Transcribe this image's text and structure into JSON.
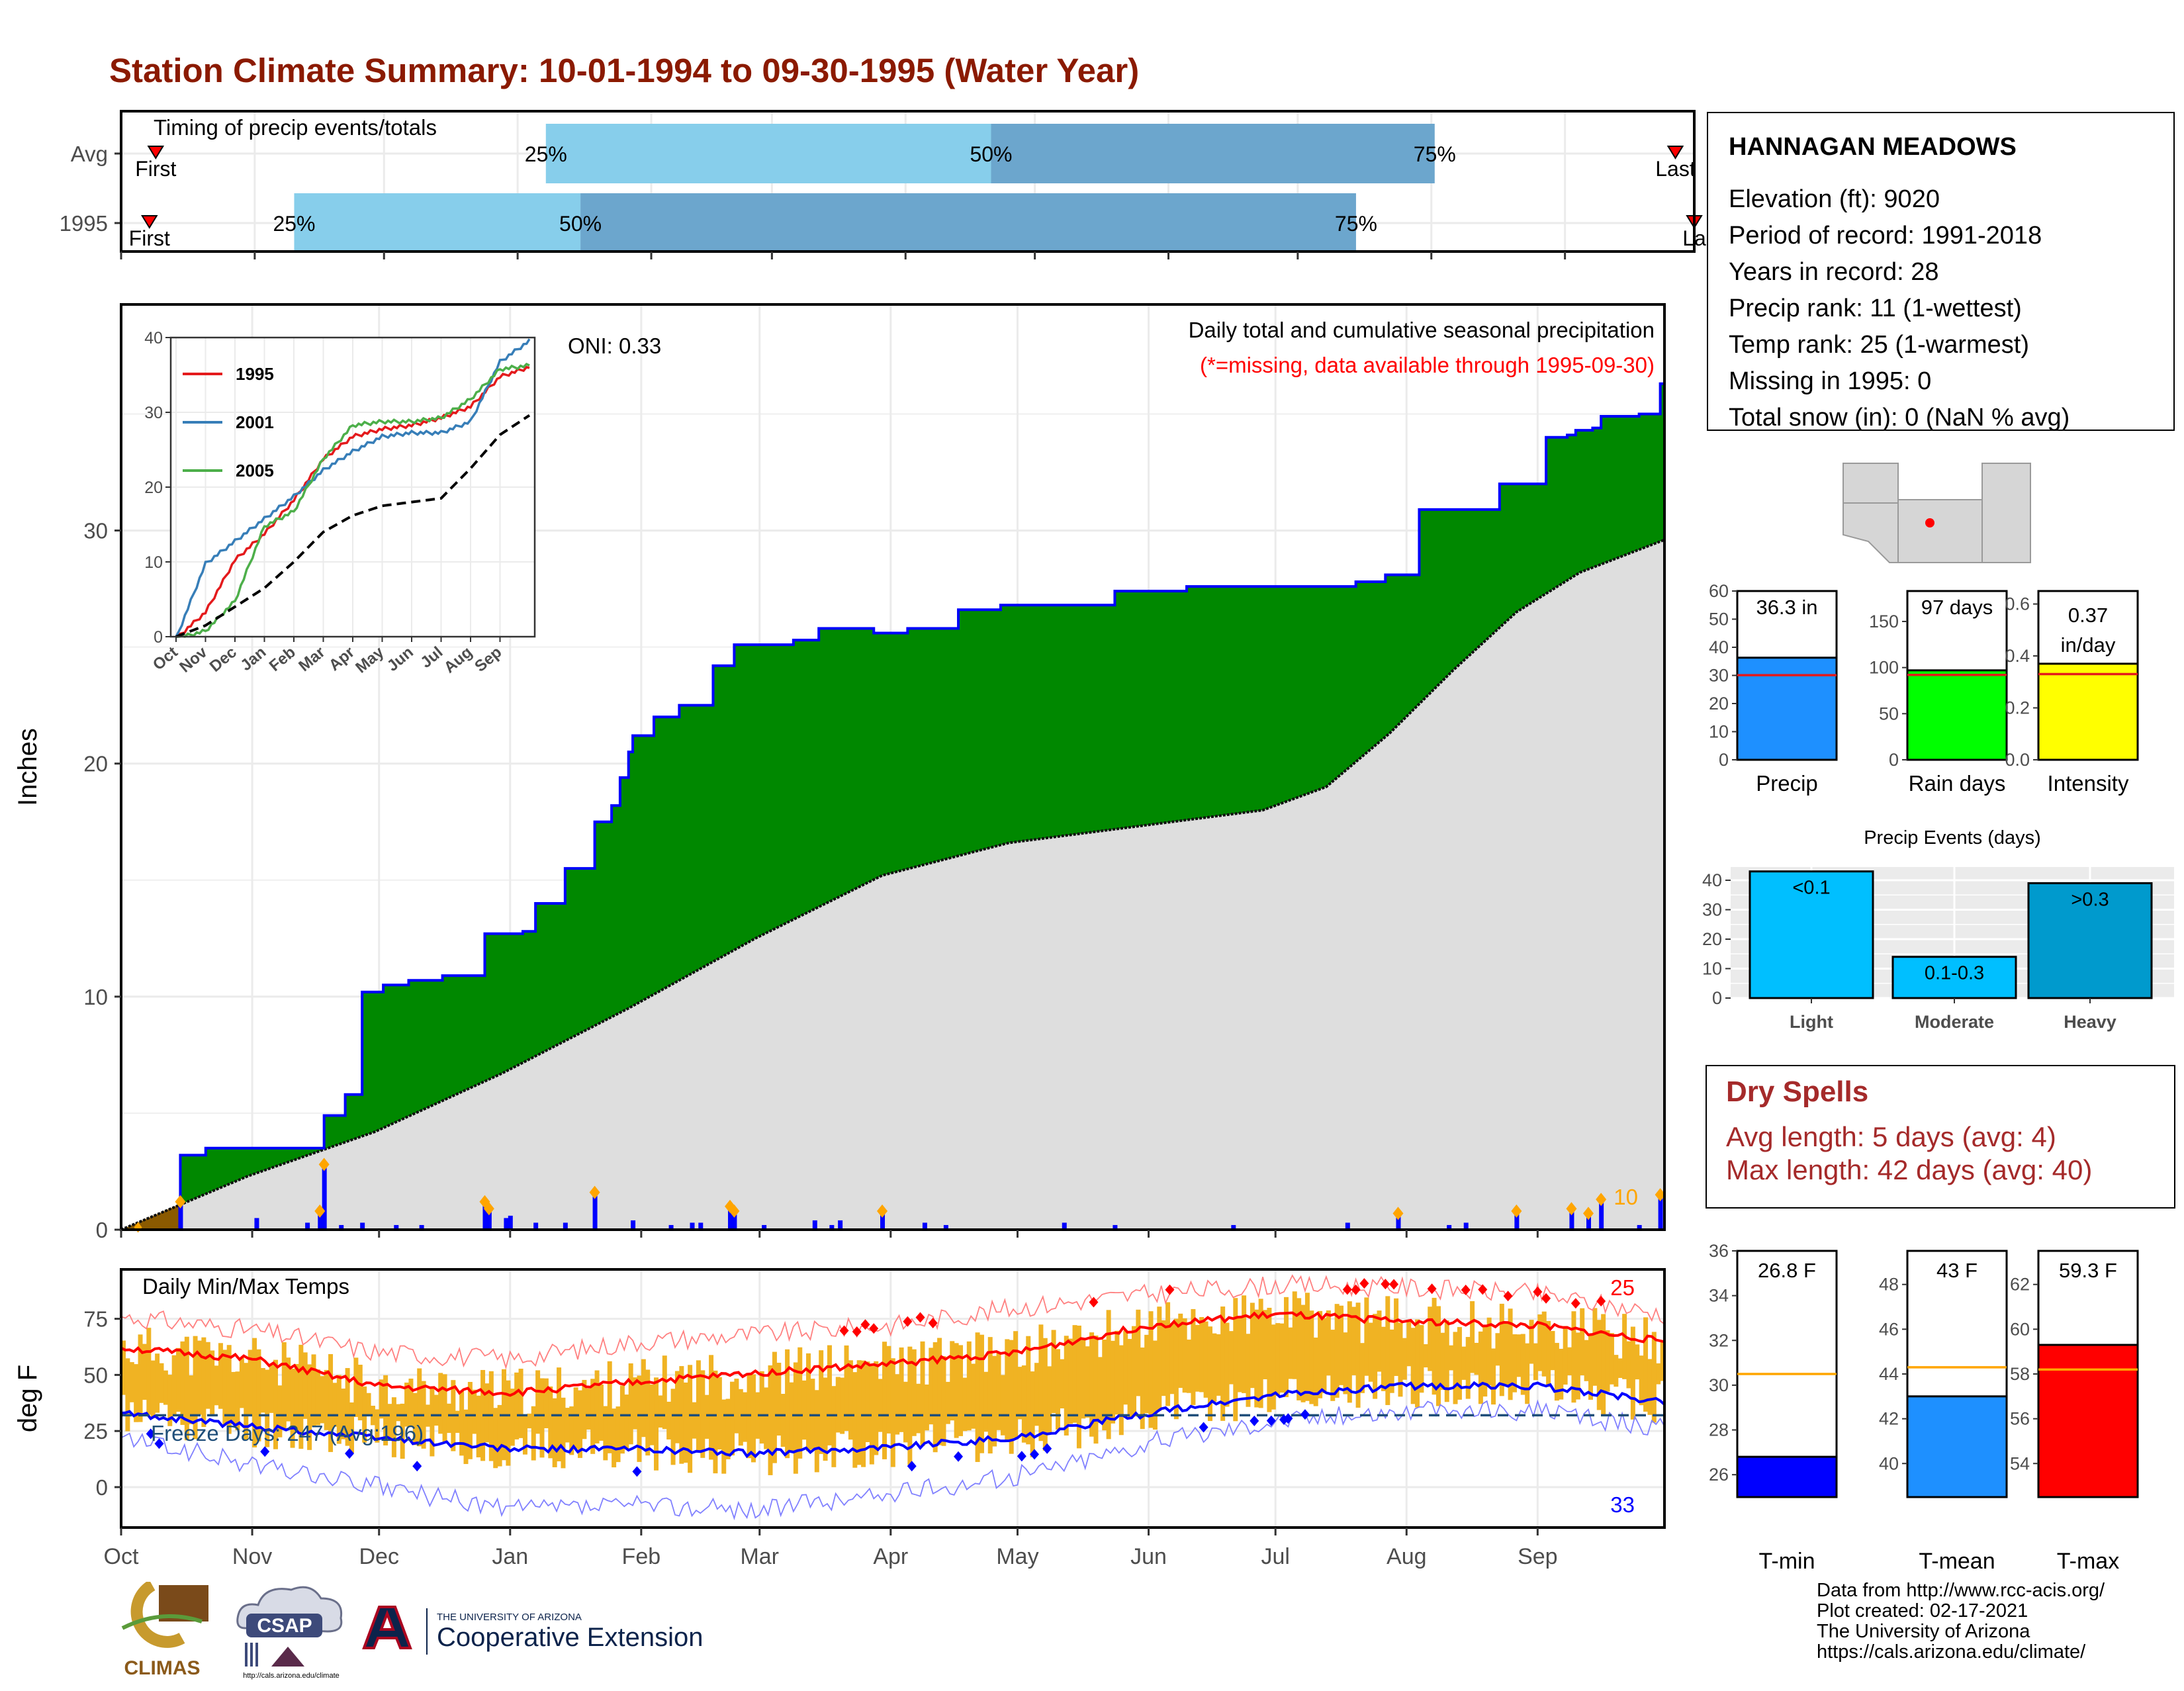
{
  "title": "Station Climate Summary: 10-01-1994 to 09-30-1995 (Water Year)",
  "timing": {
    "label": "Timing of precip events/totals",
    "rows": [
      {
        "name": "Avg",
        "first_label": "First",
        "last_label": "Last",
        "first": 0.022,
        "q25": 0.27,
        "q50": 0.553,
        "q75": 0.835,
        "last": 0.988
      },
      {
        "name": "1995",
        "first_label": "First",
        "last_label": "La",
        "first": 0.018,
        "q25": 0.11,
        "q50": 0.292,
        "q75": 0.785,
        "last": 1.0
      }
    ],
    "q_labels": [
      "25%",
      "50%",
      "75%"
    ]
  },
  "station": {
    "name": "HANNAGAN MEADOWS",
    "lines": [
      "Elevation (ft): 9020",
      "Period of record: 1991-2018",
      "Years in record: 28",
      "Precip rank: 11 (1-wettest)",
      "Temp rank: 25 (1-warmest)",
      "Missing in 1995: 0",
      "Total snow (in): 0 (NaN % avg)"
    ]
  },
  "main_plot": {
    "ylabel": "Inches",
    "caption": "Daily total and cumulative seasonal precipitation",
    "missing_note": "(*=missing, data available through 1995-09-30)",
    "oni": "ONI: 0.33",
    "count_label": "10",
    "yticks": [
      0,
      10,
      20,
      30
    ],
    "ylim": [
      0,
      40
    ],
    "month_labels": [
      "Oct",
      "Nov",
      "Dec",
      "Jan",
      "Feb",
      "Mar",
      "Apr",
      "May",
      "Jun",
      "Jul",
      "Aug",
      "Sep"
    ],
    "colors": {
      "above_avg": "#008800",
      "avg_fill": "#dedede",
      "cum_line": "#0000ff",
      "daily_bar": "#0000ff",
      "marker": "#ffa500"
    }
  },
  "inset": {
    "yticks": [
      0,
      10,
      20,
      30,
      40
    ],
    "month_labels": [
      "Oct",
      "Nov",
      "Dec",
      "Jan",
      "Feb",
      "Mar",
      "Apr",
      "May",
      "Jun",
      "Jul",
      "Aug",
      "Sep"
    ],
    "legend": [
      {
        "name": "1995",
        "color": "#e41a1c"
      },
      {
        "name": "2001",
        "color": "#377eb8"
      },
      {
        "name": "2005",
        "color": "#4daf4a"
      }
    ]
  },
  "temp_plot": {
    "ylabel": "deg F",
    "title": "Daily Min/Max Temps",
    "freeze_label": "Freeze Days: 247 (Avg:196)",
    "hot_count": "25",
    "cold_count": "33",
    "yticks": [
      0,
      25,
      50,
      75
    ],
    "ylim": [
      -18,
      97
    ]
  },
  "mini_bars": [
    {
      "name": "Precip",
      "value_label": "36.3 in",
      "value": 36.3,
      "avg": 30.1,
      "ymax": 60,
      "yticks": [
        0,
        10,
        20,
        30,
        40,
        50,
        60
      ],
      "color": "#1e90ff"
    },
    {
      "name": "Rain days",
      "value_label": "97 days",
      "value": 97,
      "avg": 92,
      "ymax": 183,
      "yticks": [
        0,
        50,
        100,
        150
      ],
      "color": "#00ff00"
    },
    {
      "name": "Intensity",
      "value_label": "0.37 in/day",
      "value": 0.37,
      "avg": 0.33,
      "ymax": 0.65,
      "yticks": [
        "0.0",
        "0.2",
        "0.4",
        "0.6"
      ],
      "color": "#ffff00"
    }
  ],
  "precip_events": {
    "title": "Precip Events (days)",
    "yticks": [
      0,
      10,
      20,
      30,
      40
    ],
    "bars": [
      {
        "cat": "Light",
        "label": "<0.1",
        "value": 43,
        "color": "#00bfff"
      },
      {
        "cat": "Moderate",
        "label": "0.1-0.3",
        "value": 14,
        "color": "#00bfff"
      },
      {
        "cat": "Heavy",
        "label": ">0.3",
        "value": 39,
        "color": "#009acd"
      }
    ]
  },
  "dry_spells": {
    "title": "Dry Spells",
    "avg_line": "Avg length: 5 days (avg: 4)",
    "max_line": "Max length: 42 days (avg: 40)",
    "color": "#a52a2a"
  },
  "temp_bars": [
    {
      "name": "T-min",
      "value_label": "26.8 F",
      "value": 26.8,
      "avg": 30.5,
      "ymin": 25,
      "ymax": 36,
      "yticks": [
        26,
        28,
        30,
        32,
        34,
        36
      ],
      "color": "#0000ff"
    },
    {
      "name": "T-mean",
      "value_label": "43 F",
      "value": 43,
      "avg": 44.3,
      "ymin": 38.5,
      "ymax": 49.5,
      "yticks": [
        40,
        42,
        44,
        46,
        48
      ],
      "color": "#1e90ff"
    },
    {
      "name": "T-max",
      "value_label": "59.3 F",
      "value": 59.3,
      "avg": 58.2,
      "ymin": 52.5,
      "ymax": 63.5,
      "yticks": [
        54,
        56,
        58,
        60,
        62
      ],
      "color": "#ff0000"
    }
  ],
  "footer": [
    "Data from http://www.rcc-acis.org/",
    "Plot created: 02-17-2021",
    "The University of Arizona",
    "https://cals.arizona.edu/climate/"
  ],
  "logos": {
    "climas": "CLIMAS",
    "csap": "CSAP",
    "csap_url": "http://cals.arizona.edu/climate",
    "ua_small": "THE UNIVERSITY OF ARIZONA",
    "ua_big": "Cooperative Extension"
  },
  "chart_data": [
    {
      "type": "area",
      "title": "Daily total and cumulative seasonal precipitation",
      "ylabel": "Inches",
      "ylim": [
        0,
        40
      ],
      "x_unit": "day of water year (Oct 1 = 0)",
      "series": [
        {
          "name": "cumulative precipitation",
          "x": [
            0,
            14,
            20,
            44,
            48,
            53,
            57,
            62,
            68,
            76,
            86,
            95,
            98,
            105,
            112,
            116,
            118,
            120,
            121,
            126,
            132,
            140,
            145,
            152,
            159,
            165,
            178,
            186,
            198,
            208,
            229,
            235,
            252,
            292,
            299,
            307,
            322,
            326,
            337,
            342,
            344,
            348,
            350,
            359,
            364,
            365
          ],
          "y": [
            0,
            3.2,
            3.5,
            3.5,
            4.9,
            5.8,
            10.2,
            10.5,
            10.7,
            10.9,
            12.7,
            12.8,
            14.0,
            15.5,
            17.5,
            18.2,
            19.4,
            20.5,
            21.2,
            22.0,
            22.5,
            24.2,
            25.1,
            25.1,
            25.3,
            25.8,
            25.6,
            25.8,
            26.6,
            26.8,
            26.8,
            27.4,
            27.6,
            27.8,
            28.1,
            30.9,
            30.9,
            32.0,
            34.0,
            34.1,
            34.3,
            34.4,
            34.9,
            35.0,
            36.3,
            36.3
          ]
        },
        {
          "name": "average cumulative",
          "x": [
            0,
            30,
            60,
            90,
            120,
            150,
            180,
            210,
            240,
            270,
            285,
            300,
            315,
            330,
            345,
            365
          ],
          "y": [
            0,
            2.3,
            4.2,
            6.7,
            9.5,
            12.5,
            15.2,
            16.6,
            17.3,
            18.0,
            19.0,
            21.3,
            24.0,
            26.5,
            28.2,
            29.6
          ]
        }
      ],
      "daily_precip": {
        "x": [
          14,
          32,
          44,
          47,
          48,
          52,
          57,
          65,
          71,
          86,
          87,
          91,
          92,
          98,
          105,
          112,
          121,
          130,
          135,
          137,
          144,
          145,
          152,
          164,
          168,
          170,
          180,
          190,
          195,
          223,
          235,
          263,
          290,
          302,
          314,
          318,
          330,
          343,
          347,
          350,
          359,
          364
        ],
        "y": [
          1.2,
          0.5,
          0.3,
          0.8,
          2.8,
          0.2,
          0.3,
          0.2,
          0.2,
          1.2,
          0.9,
          0.5,
          0.6,
          0.3,
          0.3,
          1.6,
          0.4,
          0.2,
          0.3,
          0.3,
          1.0,
          0.8,
          0.2,
          0.4,
          0.2,
          0.4,
          0.8,
          0.3,
          0.2,
          0.3,
          0.2,
          0.2,
          0.3,
          0.7,
          0.2,
          0.3,
          0.8,
          0.9,
          0.7,
          1.3,
          0.2,
          1.5
        ]
      }
    },
    {
      "type": "line",
      "title": "",
      "ylim": [
        0,
        40
      ],
      "x": [
        "Oct",
        "Nov",
        "Dec",
        "Jan",
        "Feb",
        "Mar",
        "Apr",
        "May",
        "Jun",
        "Jul",
        "Aug",
        "Sep",
        "end"
      ],
      "series": [
        {
          "name": "1995",
          "values": [
            0,
            3.5,
            10.5,
            14,
            18.5,
            24,
            27,
            28,
            28.5,
            29.5,
            31,
            35,
            36.3
          ]
        },
        {
          "name": "2001",
          "values": [
            0,
            10,
            13,
            16,
            19,
            22.5,
            25,
            27,
            27.5,
            27.5,
            29,
            37,
            39.8
          ]
        },
        {
          "name": "2005",
          "values": [
            0,
            1,
            5,
            15,
            17,
            24,
            28.5,
            29,
            29,
            29.5,
            32,
            36,
            36.5
          ]
        },
        {
          "name": "average",
          "values": [
            0,
            1.5,
            4,
            6.5,
            10,
            14,
            16.2,
            17.5,
            18,
            18.5,
            22.5,
            27,
            29.6
          ]
        }
      ]
    },
    {
      "type": "line",
      "title": "Daily Min/Max Temps",
      "ylabel": "deg F",
      "ylim": [
        -18,
        97
      ],
      "x": [
        "Oct",
        "Nov",
        "Dec",
        "Jan",
        "Feb",
        "Mar",
        "Apr",
        "May",
        "Jun",
        "Jul",
        "Aug",
        "Sep",
        "end"
      ],
      "series": [
        {
          "name": "average max",
          "values": [
            62,
            57,
            45,
            42,
            47,
            51,
            55,
            60,
            72,
            77,
            74,
            72,
            65
          ]
        },
        {
          "name": "average min",
          "values": [
            33,
            27,
            22,
            17,
            17,
            15,
            18,
            22,
            33,
            41,
            45,
            45,
            38
          ]
        },
        {
          "name": "record max",
          "values": [
            76,
            70,
            60,
            57,
            65,
            68,
            72,
            80,
            86,
            90,
            89,
            86,
            77
          ]
        },
        {
          "name": "record min",
          "values": [
            22,
            10,
            0,
            -10,
            -8,
            -10,
            -3,
            5,
            20,
            30,
            34,
            34,
            26
          ]
        }
      ]
    }
  ]
}
